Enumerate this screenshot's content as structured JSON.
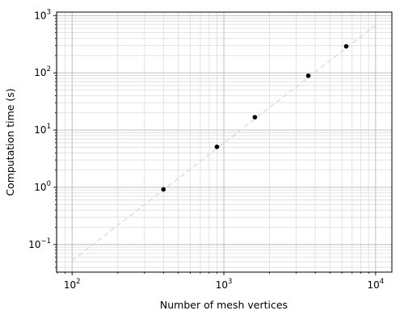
{
  "chart_data": {
    "type": "scatter",
    "title": "",
    "xlabel": "Number of mesh vertices",
    "ylabel": "Computation time (s)",
    "x_scale": "log",
    "y_scale": "log",
    "xlim": [
      79,
      12800
    ],
    "ylim": [
      0.033,
      1150
    ],
    "grid": "on (major and minor)",
    "x_ticks": [
      {
        "value": 100,
        "base": "10",
        "exp": "2"
      },
      {
        "value": 1000,
        "base": "10",
        "exp": "3"
      },
      {
        "value": 10000,
        "base": "10",
        "exp": "4"
      }
    ],
    "y_ticks": [
      {
        "value": 0.1,
        "base": "10",
        "exp": "−1"
      },
      {
        "value": 1,
        "base": "10",
        "exp": "0"
      },
      {
        "value": 10,
        "base": "10",
        "exp": "1"
      },
      {
        "value": 100,
        "base": "10",
        "exp": "2"
      },
      {
        "value": 1000,
        "base": "10",
        "exp": "3"
      }
    ],
    "series": [
      {
        "type": "scatter",
        "color": "#000000",
        "x": [
          400,
          900,
          1600,
          3600,
          6400
        ],
        "y": [
          0.92,
          5.1,
          16.8,
          89,
          290
        ]
      },
      {
        "type": "line",
        "style": "dashed",
        "color": "#dddddd",
        "x": [
          100,
          10000
        ],
        "y": [
          0.052,
          680
        ]
      }
    ]
  }
}
